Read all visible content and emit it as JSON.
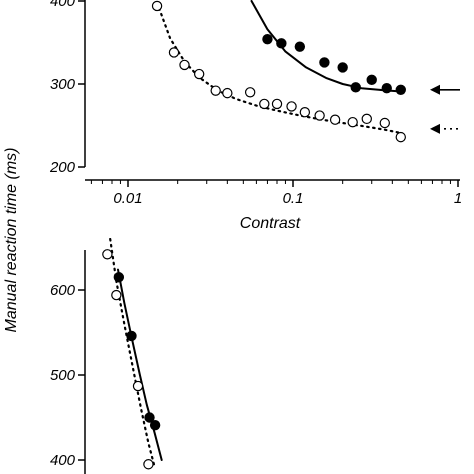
{
  "ylabel": "Manual reaction time (ms)",
  "chart_data": [
    {
      "type": "scatter",
      "panel": "top",
      "xlabel": "Contrast",
      "ylabel": "Manual reaction time (ms)",
      "xscale": "log",
      "xlim": [
        0.004,
        1
      ],
      "ylim": [
        200,
        400
      ],
      "xticks": [
        0.01,
        0.1,
        1
      ],
      "xtick_labels": [
        "0.01",
        "0.1",
        "1"
      ],
      "yticks": [
        200,
        300,
        400
      ],
      "ytick_labels": [
        "200",
        "300",
        "400"
      ],
      "series": [
        {
          "style": "filled circles, solid fit line",
          "color": "#000000",
          "x": [
            0.07,
            0.085,
            0.11,
            0.155,
            0.2,
            0.24,
            0.3,
            0.37,
            0.45
          ],
          "y": [
            354,
            349,
            345,
            326,
            320,
            296,
            305,
            295,
            293
          ],
          "fit": {
            "x": [
              0.056,
              0.07,
              0.09,
              0.12,
              0.16,
              0.2,
              0.26,
              0.33,
              0.45
            ],
            "y": [
              400,
              366,
              339,
              320,
              307,
              300,
              295,
              293,
              291
            ]
          }
        },
        {
          "style": "open circles, dotted fit line",
          "color": "#000000",
          "x": [
            0.015,
            0.019,
            0.022,
            0.027,
            0.034,
            0.04,
            0.055,
            0.067,
            0.08,
            0.098,
            0.118,
            0.145,
            0.18,
            0.23,
            0.28,
            0.36,
            0.45
          ],
          "y": [
            394,
            338,
            323,
            312,
            292,
            289,
            290,
            276,
            276,
            273,
            266,
            262,
            257,
            254,
            258,
            253,
            236
          ],
          "fit": {
            "x": [
              0.015,
              0.018,
              0.022,
              0.027,
              0.035,
              0.045,
              0.06,
              0.08,
              0.11,
              0.15,
              0.2,
              0.27,
              0.36,
              0.45
            ],
            "y": [
              398,
              355,
              327,
              308,
              292,
              282,
              274,
              268,
              262,
              257,
              253,
              249,
              245,
              241
            ]
          }
        }
      ],
      "annotations": [
        {
          "kind": "arrow-left",
          "line": "solid",
          "at_y": 293
        },
        {
          "kind": "arrow-left",
          "line": "dotted",
          "at_y": 246
        }
      ]
    },
    {
      "type": "scatter",
      "panel": "bottom",
      "xscale": "log",
      "xlim": [
        0.004,
        1
      ],
      "ylim": [
        390,
        660
      ],
      "yticks": [
        400,
        500,
        600
      ],
      "ytick_labels": [
        "400",
        "500",
        "600"
      ],
      "series": [
        {
          "style": "filled circles, solid fit line",
          "color": "#000000",
          "x": [
            0.0088,
            0.0105,
            0.0135,
            0.0146
          ],
          "y": [
            615,
            546,
            450,
            441
          ],
          "fit": {
            "x": [
              0.0087,
              0.0095,
              0.0105,
              0.0118,
              0.013,
              0.0145,
              0.016
            ],
            "y": [
              624,
              585,
              545,
              500,
              465,
              432,
              400
            ]
          }
        },
        {
          "style": "open circles, dotted fit line",
          "color": "#000000",
          "x": [
            0.0075,
            0.0085,
            0.0115,
            0.0133
          ],
          "y": [
            642,
            594,
            487,
            395
          ],
          "fit": {
            "x": [
              0.0078,
              0.0085,
              0.0095,
              0.0108,
              0.012,
              0.0133,
              0.0145
            ],
            "y": [
              660,
              610,
              560,
              505,
              460,
              420,
              392
            ]
          }
        }
      ]
    }
  ]
}
